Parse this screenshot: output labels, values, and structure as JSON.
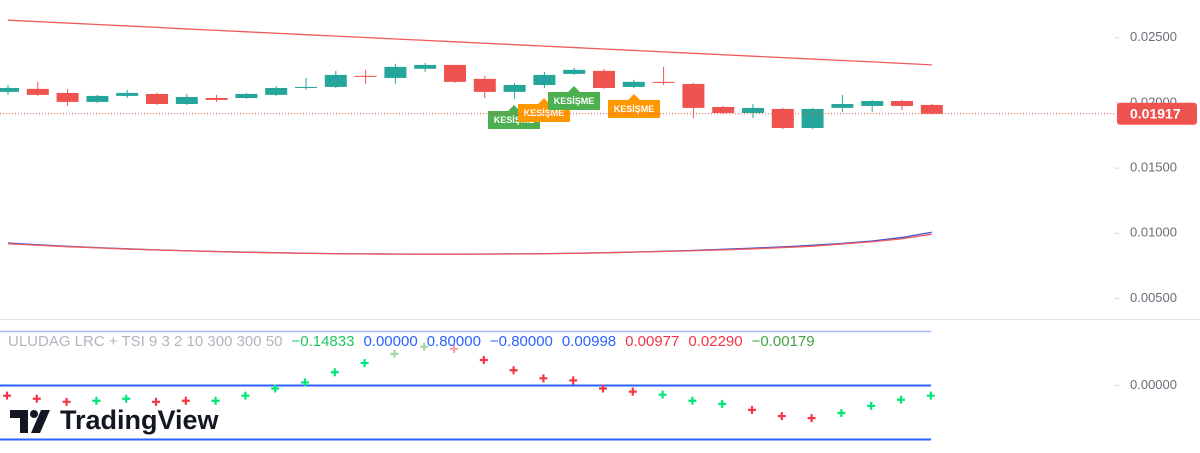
{
  "chart_data": [
    {
      "type": "candlestick",
      "up_color": "#26a69a",
      "down_color": "#ef5350",
      "ohlc": [
        [
          0.02085,
          0.02138,
          0.02062,
          0.02115
        ],
        [
          0.02108,
          0.02162,
          0.02054,
          0.02062
        ],
        [
          0.02077,
          0.02108,
          0.01977,
          0.02008
        ],
        [
          0.02008,
          0.02062,
          0.02,
          0.02054
        ],
        [
          0.02054,
          0.021,
          0.02038,
          0.02077
        ],
        [
          0.02069,
          0.02077,
          0.01985,
          0.01992
        ],
        [
          0.01992,
          0.02069,
          0.01985,
          0.02046
        ],
        [
          0.02038,
          0.02062,
          0.02008,
          0.02023
        ],
        [
          0.02038,
          0.02077,
          0.02031,
          0.02069
        ],
        [
          0.02062,
          0.02131,
          0.02054,
          0.02115
        ],
        [
          0.02115,
          0.02192,
          0.021,
          0.02123
        ],
        [
          0.02123,
          0.02246,
          0.02115,
          0.02215
        ],
        [
          0.02208,
          0.02254,
          0.02146,
          0.022
        ],
        [
          0.02192,
          0.023,
          0.02146,
          0.02277
        ],
        [
          0.02262,
          0.02308,
          0.02238,
          0.02292
        ],
        [
          0.02292,
          0.02292,
          0.02154,
          0.02162
        ],
        [
          0.02185,
          0.02208,
          0.02038,
          0.02085
        ],
        [
          0.02085,
          0.02154,
          0.02031,
          0.02138
        ],
        [
          0.02138,
          0.02238,
          0.02115,
          0.02215
        ],
        [
          0.02223,
          0.02269,
          0.02215,
          0.02254
        ],
        [
          0.02246,
          0.02262,
          0.02108,
          0.02115
        ],
        [
          0.02123,
          0.02177,
          0.02115,
          0.02162
        ],
        [
          0.02162,
          0.02277,
          0.02138,
          0.02154
        ],
        [
          0.02146,
          0.02154,
          0.01885,
          0.01962
        ],
        [
          0.01969,
          0.01977,
          0.01915,
          0.01923
        ],
        [
          0.01923,
          0.01992,
          0.01885,
          0.01962
        ],
        [
          0.01954,
          0.01962,
          0.018,
          0.01808
        ],
        [
          0.01808,
          0.01962,
          0.018,
          0.01954
        ],
        [
          0.01962,
          0.02062,
          0.01931,
          0.01992
        ],
        [
          0.01977,
          0.02023,
          0.01931,
          0.02015
        ],
        [
          0.02015,
          0.02023,
          0.01946,
          0.01977
        ],
        [
          0.01985,
          0.01992,
          0.01915,
          0.01917
        ]
      ],
      "series": [
        {
          "color": "#f05a5a",
          "values": [
            0.02635,
            0.02624,
            0.02613,
            0.02602,
            0.02591,
            0.0258,
            0.02568,
            0.02557,
            0.02546,
            0.02535,
            0.02524,
            0.02513,
            0.02502,
            0.02491,
            0.0248,
            0.02469,
            0.02458,
            0.02447,
            0.02436,
            0.02425,
            0.02414,
            0.02403,
            0.02392,
            0.02381,
            0.0237,
            0.02359,
            0.02348,
            0.02337,
            0.02326,
            0.02315,
            0.02304,
            0.02292
          ]
        },
        {
          "color": "#3f51d8",
          "values": [
            0.00925,
            0.00912,
            0.009,
            0.0089,
            0.00881,
            0.00873,
            0.00866,
            0.0086,
            0.00855,
            0.00851,
            0.00847,
            0.00844,
            0.00842,
            0.00841,
            0.0084,
            0.0084,
            0.00841,
            0.00842,
            0.00844,
            0.00847,
            0.00851,
            0.00856,
            0.00862,
            0.00869,
            0.00877,
            0.00886,
            0.00896,
            0.00908,
            0.00922,
            0.00941,
            0.00968,
            0.01008
          ]
        },
        {
          "color": "#f05a5a",
          "values": [
            0.0092,
            0.00908,
            0.00897,
            0.00888,
            0.00879,
            0.00872,
            0.00865,
            0.00859,
            0.00854,
            0.0085,
            0.00846,
            0.00843,
            0.00841,
            0.0084,
            0.00839,
            0.00839,
            0.0084,
            0.00841,
            0.00843,
            0.00846,
            0.0085,
            0.00855,
            0.0086,
            0.00866,
            0.00873,
            0.00881,
            0.0089,
            0.00901,
            0.00918,
            0.00935,
            0.00958,
            0.00993
          ]
        }
      ],
      "last_price": 0.01917,
      "ylim": [
        0.0035,
        0.0279
      ],
      "yticks": [
        {
          "value": 0.025,
          "label": "0.02500"
        },
        {
          "value": 0.02,
          "label": "0.02000"
        },
        {
          "value": 0.015,
          "label": "0.01500"
        },
        {
          "value": 0.01,
          "label": "0.01000"
        },
        {
          "value": 0.005,
          "label": "0.00500"
        }
      ],
      "annotations": [
        {
          "text": "KESİŞME",
          "color": "#4caf50"
        },
        {
          "text": "KESİŞME",
          "color": "#ff9800"
        },
        {
          "text": "KESİŞME",
          "color": "#4caf50"
        },
        {
          "text": "KESİŞME",
          "color": "#ff9800"
        }
      ]
    },
    {
      "type": "scatter",
      "title": "ULUDAG LRC + TSI 9 3 2 10 300 300 50",
      "indicator_values": [
        {
          "value": -0.14833,
          "label": "−0.14833",
          "color": "#22c55e"
        },
        {
          "value": 0,
          "label": "0.00000",
          "color": "#2962ff"
        },
        {
          "value": 0.8,
          "label": "0.80000",
          "color": "#2962ff"
        },
        {
          "value": -0.8,
          "label": "−0.80000",
          "color": "#2962ff"
        },
        {
          "value": 0.00998,
          "label": "0.00998",
          "color": "#2962ff"
        },
        {
          "value": 0.00977,
          "label": "0.00977",
          "color": "#f23645"
        },
        {
          "value": 0.0229,
          "label": "0.02290",
          "color": "#f23645"
        },
        {
          "value": -0.00179,
          "label": "−0.00179",
          "color": "#43a047"
        }
      ],
      "values": [
        -0.151,
        -0.196,
        -0.242,
        -0.226,
        -0.196,
        -0.242,
        -0.226,
        -0.226,
        -0.151,
        -0.045,
        0.045,
        0.196,
        0.332,
        0.468,
        0.574,
        0.543,
        0.377,
        0.226,
        0.106,
        0.075,
        -0.045,
        -0.091,
        -0.136,
        -0.226,
        -0.272,
        -0.362,
        -0.453,
        -0.483,
        -0.408,
        -0.302,
        -0.211,
        -0.151
      ],
      "colors": [
        "#f23645",
        "#f23645",
        "#f23645",
        "#00e676",
        "#00e676",
        "#f23645",
        "#f23645",
        "#00e676",
        "#00e676",
        "#00e676",
        "#00e676",
        "#00e676",
        "#00e676",
        "#a5d6a7",
        "#a5d6a7",
        "#f5a3a3",
        "#f23645",
        "#f23645",
        "#f23645",
        "#f23645",
        "#f23645",
        "#f23645",
        "#00e676",
        "#00e676",
        "#00e676",
        "#f23645",
        "#f23645",
        "#f23645",
        "#00e676",
        "#00e676",
        "#00e676",
        "#00e676"
      ],
      "level_color": "#2962ff",
      "ylim": [
        -1.0,
        0.97
      ],
      "yticks": [
        {
          "value": 0,
          "label": "0.00000"
        }
      ],
      "watermark": "TradingView"
    }
  ]
}
